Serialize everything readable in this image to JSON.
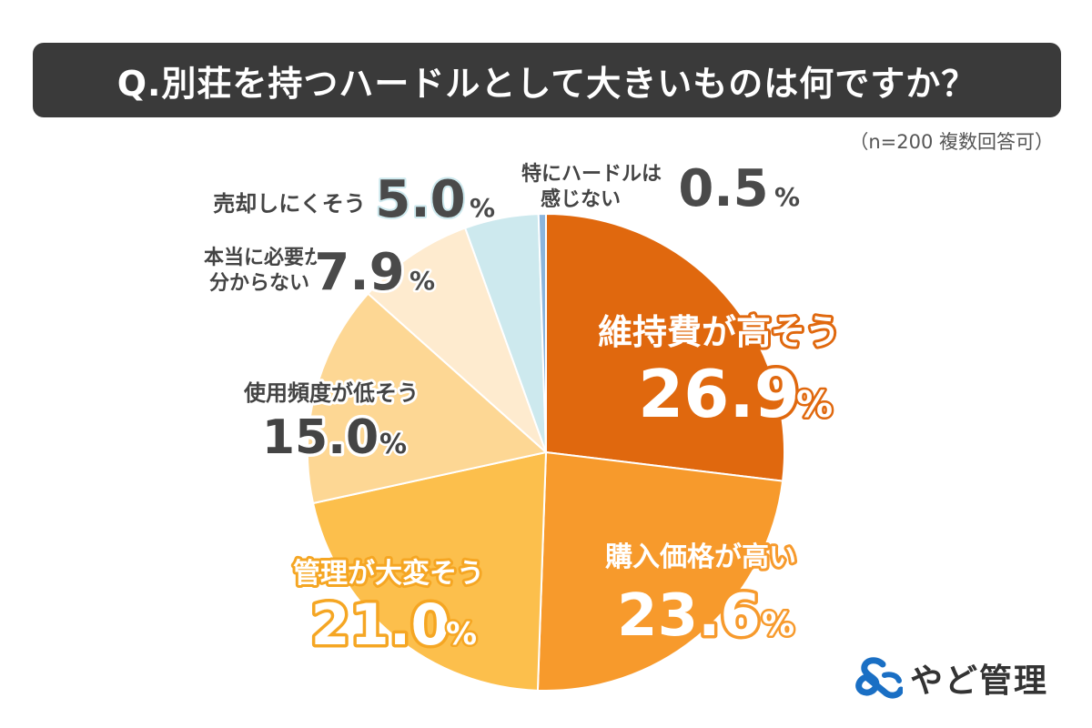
{
  "header": {
    "title": "Q.別荘を持つハードルとして大きいものは何ですか？"
  },
  "note": "（n=200 複数回答可）",
  "logo": {
    "text": "やど管理"
  },
  "chart_data": {
    "type": "pie",
    "title": "Q.別荘を持つハードルとして大きいものは何ですか？",
    "unit": "%",
    "slices": [
      {
        "label": "維持費が高そう",
        "value": 26.9,
        "value_text": "26.9",
        "color": "#e0680e"
      },
      {
        "label": "購入価格が高い",
        "value": 23.6,
        "value_text": "23.6",
        "color": "#f79a2c"
      },
      {
        "label": "管理が大変そう",
        "value": 21.0,
        "value_text": "21.0",
        "color": "#fcbf4c"
      },
      {
        "label": "使用頻度が低そう",
        "value": 15.0,
        "value_text": "15.0",
        "color": "#fdd794"
      },
      {
        "label": "本当に必要か分からない",
        "value": 7.9,
        "value_text": "7.9",
        "color": "#feebcf"
      },
      {
        "label": "売却しにくそう",
        "value": 5.0,
        "value_text": "5.0",
        "color": "#cde9ee"
      },
      {
        "label": "特にハードルは感じない",
        "value": 0.5,
        "value_text": "0.5",
        "color": "#8bb5dd"
      }
    ]
  }
}
